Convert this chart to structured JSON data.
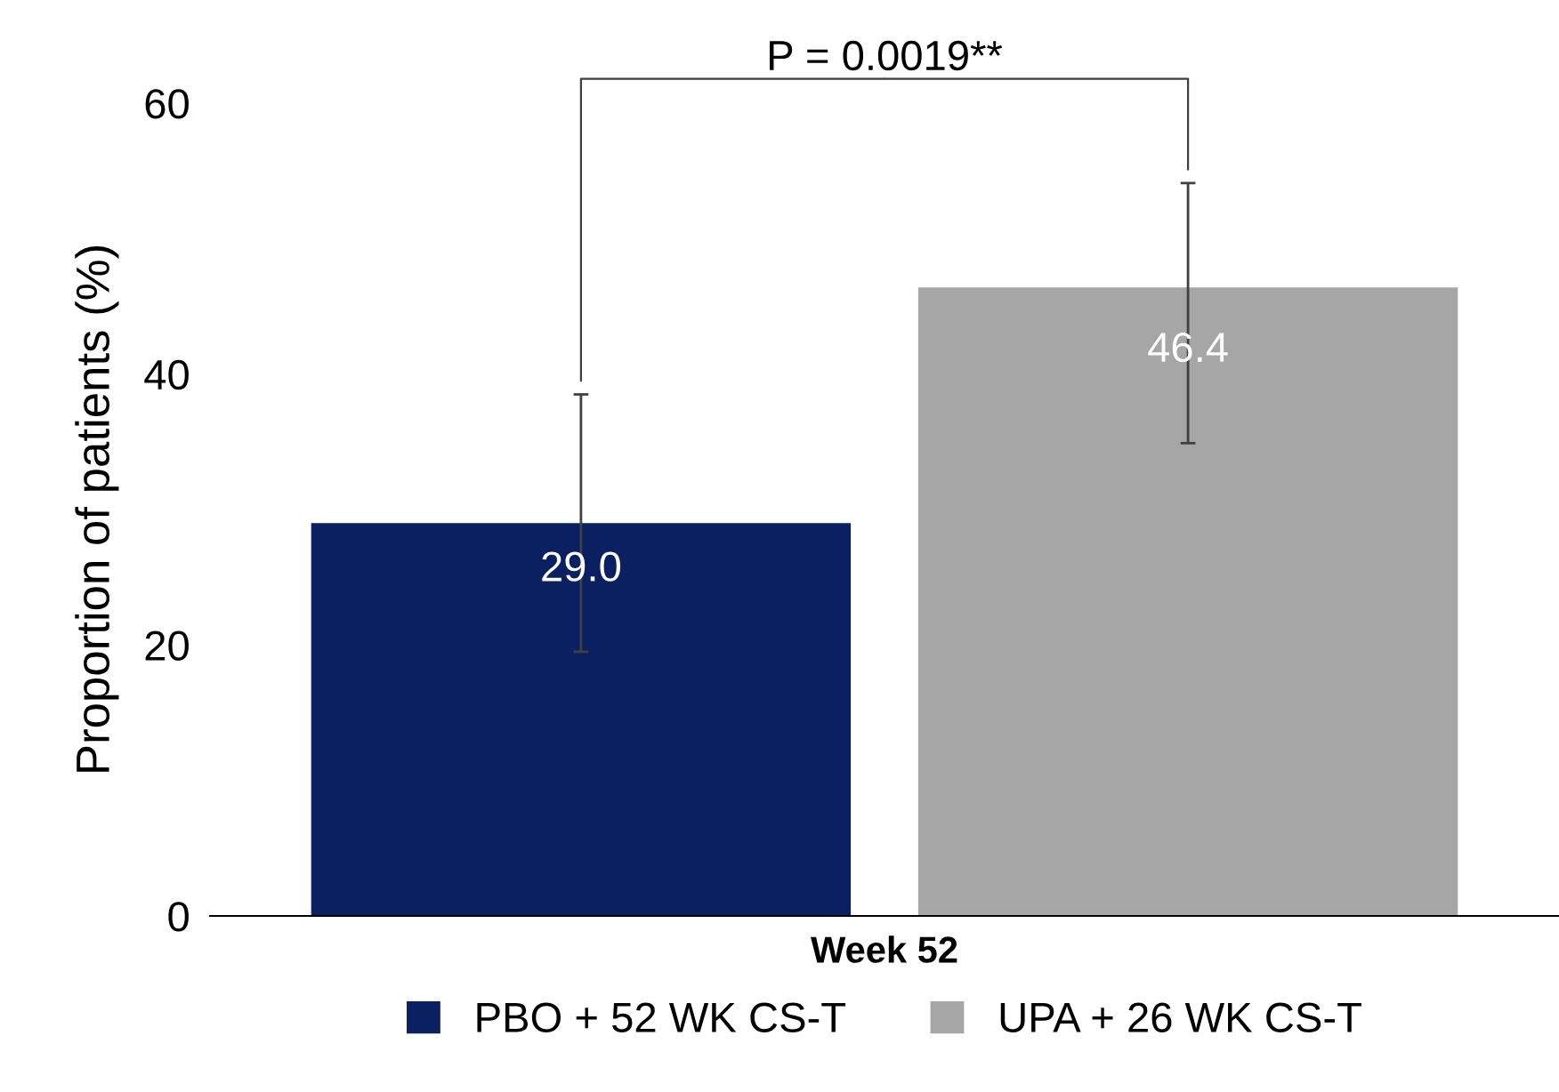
{
  "chart_data": {
    "type": "bar",
    "ylabel": "Proportion of patients (%)",
    "categories": [
      "Week 52"
    ],
    "series": [
      {
        "name": "PBO + 52 WK CS-T",
        "color": "#0a2060",
        "values": [
          29.0
        ],
        "value_labels": [
          "29.0"
        ],
        "errors": [
          [
            19.5,
            38.5
          ]
        ]
      },
      {
        "name": "UPA + 26 WK CS-T",
        "color": "#a6a6a6",
        "values": [
          46.4
        ],
        "value_labels": [
          "46.4"
        ],
        "errors": [
          [
            34.9,
            54.1
          ]
        ]
      }
    ],
    "ylim": [
      0,
      60
    ],
    "yticks": [
      0,
      20,
      40,
      60
    ],
    "grid": false,
    "legend": "bottom",
    "data_labels": true,
    "annotations": [
      "P = 0.0019**"
    ]
  }
}
